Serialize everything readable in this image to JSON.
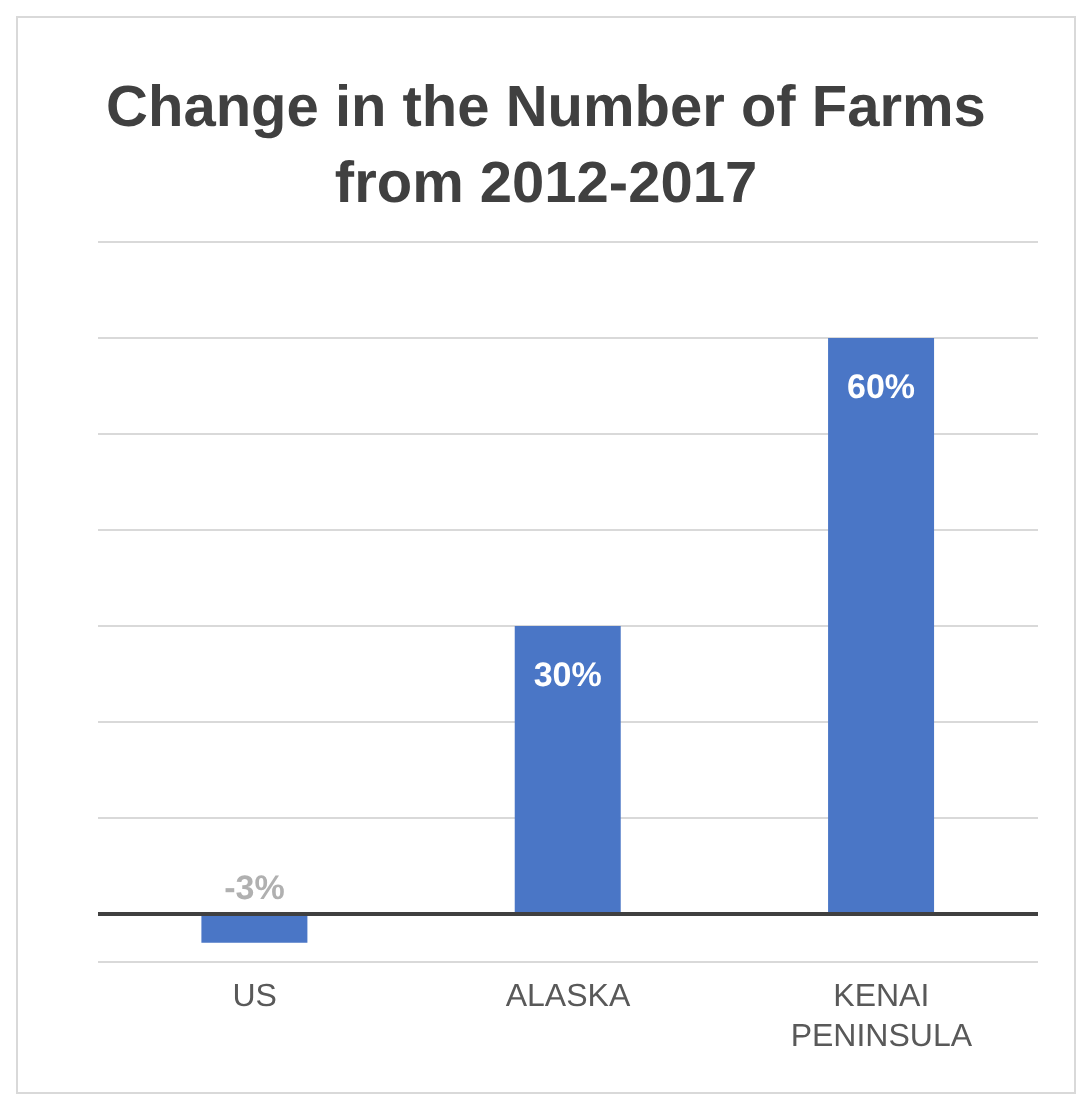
{
  "chart_data": {
    "type": "bar",
    "title": "Change in the Number of Farms from 2012-2017",
    "categories": [
      "US",
      "ALASKA",
      "KENAI PENINSULA"
    ],
    "values": [
      -3,
      30,
      60
    ],
    "color": "#4a76c6",
    "value_labels": [
      "-3%",
      "30%",
      "60%"
    ],
    "ylim": [
      -5,
      70
    ],
    "yticks": [
      {
        "value": 0,
        "label": null
      },
      {
        "value": 10,
        "label": null
      },
      {
        "value": 20,
        "label": null
      },
      {
        "value": 30,
        "label": null
      },
      {
        "value": 40,
        "label": null
      },
      {
        "value": 50,
        "label": null
      },
      {
        "value": 60,
        "label": null
      },
      {
        "value": 70,
        "label": null
      }
    ],
    "grid": "y",
    "tick_labels": "x",
    "legend": false
  }
}
